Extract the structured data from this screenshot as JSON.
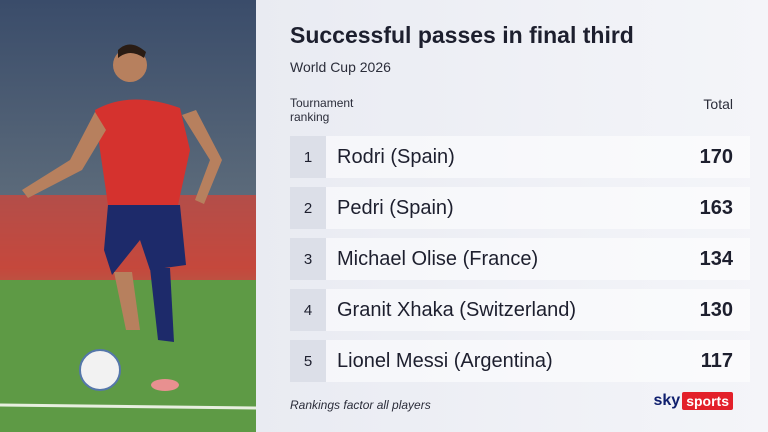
{
  "header": {
    "title": "Successful passes in final third",
    "subtitle": "World Cup 2026"
  },
  "table": {
    "rank_header": "Tournament ranking",
    "total_header": "Total",
    "rows": [
      [
        1,
        "Rodri (Spain)",
        170
      ],
      [
        2,
        "Pedri (Spain)",
        163
      ],
      [
        3,
        "Michael Olise (France)",
        134
      ],
      [
        4,
        "Granit Xhaka (Switzerland)",
        130
      ],
      [
        5,
        "Lionel Messi (Argentina)",
        117
      ]
    ]
  },
  "footer": {
    "note": "Rankings factor all players",
    "logo": [
      "sky",
      "sports"
    ]
  }
}
